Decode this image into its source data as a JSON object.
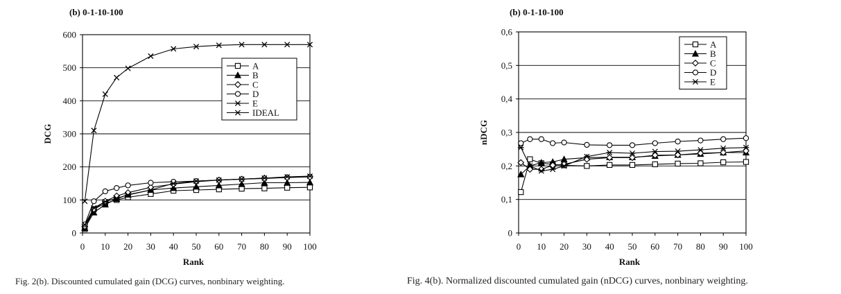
{
  "chart_data": [
    {
      "type": "line",
      "title": "(b) 0-1-10-100",
      "xlabel": "Rank",
      "ylabel": "DCG",
      "x": [
        1,
        5,
        10,
        15,
        20,
        30,
        40,
        50,
        60,
        70,
        80,
        90,
        100
      ],
      "xticks": [
        "0",
        "10",
        "20",
        "30",
        "40",
        "50",
        "60",
        "70",
        "80",
        "90",
        "100"
      ],
      "yticks": [
        "0",
        "100",
        "200",
        "300",
        "400",
        "500",
        "600"
      ],
      "xlim": [
        0,
        100
      ],
      "ylim": [
        0,
        600
      ],
      "legend_position": "top-right",
      "series": [
        {
          "name": "A",
          "marker": "square",
          "values": [
            12,
            72,
            90,
            100,
            108,
            118,
            128,
            130,
            132,
            134,
            135,
            137,
            138
          ]
        },
        {
          "name": "B",
          "marker": "triangle",
          "values": [
            15,
            62,
            86,
            103,
            116,
            130,
            136,
            140,
            144,
            148,
            152,
            152,
            153
          ]
        },
        {
          "name": "C",
          "marker": "diamond",
          "values": [
            20,
            72,
            96,
            112,
            122,
            138,
            148,
            155,
            160,
            163,
            166,
            168,
            170
          ]
        },
        {
          "name": "D",
          "marker": "circle",
          "values": [
            26,
            96,
            126,
            136,
            144,
            152,
            155,
            157,
            160,
            163,
            165,
            168,
            170
          ]
        },
        {
          "name": "E",
          "marker": "star",
          "values": [
            25,
            76,
            95,
            105,
            115,
            130,
            150,
            157,
            160,
            163,
            166,
            170,
            172
          ]
        },
        {
          "name": "IDEAL",
          "marker": "x",
          "values": [
            96,
            310,
            420,
            470,
            498,
            535,
            557,
            564,
            568,
            570,
            570,
            570,
            570
          ]
        }
      ]
    },
    {
      "type": "line",
      "title": "(b) 0-1-10-100",
      "xlabel": "Rank",
      "ylabel": "nDCG",
      "x": [
        1,
        5,
        10,
        15,
        20,
        30,
        40,
        50,
        60,
        70,
        80,
        90,
        100
      ],
      "xticks": [
        "0",
        "10",
        "20",
        "30",
        "40",
        "50",
        "60",
        "70",
        "80",
        "90",
        "100"
      ],
      "yticks": [
        "0",
        "0,1",
        "0,2",
        "0,3",
        "0,4",
        "0,5",
        "0,6"
      ],
      "xlim": [
        0,
        100
      ],
      "ylim": [
        0,
        0.6
      ],
      "legend_position": "top-right",
      "series": [
        {
          "name": "A",
          "marker": "square",
          "values": [
            0.122,
            0.22,
            0.208,
            0.205,
            0.202,
            0.2,
            0.203,
            0.203,
            0.205,
            0.207,
            0.208,
            0.211,
            0.212
          ]
        },
        {
          "name": "B",
          "marker": "triangle",
          "values": [
            0.175,
            0.2,
            0.21,
            0.212,
            0.22,
            0.225,
            0.226,
            0.226,
            0.23,
            0.233,
            0.236,
            0.24,
            0.24
          ]
        },
        {
          "name": "C",
          "marker": "diamond",
          "values": [
            0.21,
            0.19,
            0.19,
            0.202,
            0.205,
            0.22,
            0.225,
            0.225,
            0.232,
            0.233,
            0.238,
            0.24,
            0.245
          ]
        },
        {
          "name": "D",
          "marker": "circle",
          "values": [
            0.268,
            0.28,
            0.28,
            0.268,
            0.27,
            0.263,
            0.262,
            0.262,
            0.268,
            0.273,
            0.276,
            0.28,
            0.283
          ]
        },
        {
          "name": "E",
          "marker": "star",
          "values": [
            0.255,
            0.2,
            0.185,
            0.19,
            0.2,
            0.228,
            0.24,
            0.238,
            0.243,
            0.244,
            0.248,
            0.253,
            0.255
          ]
        }
      ]
    }
  ],
  "captions": {
    "fig2": "Fig. 2(b).   Discounted cumulated gain (DCG) curves, nonbinary weighting.",
    "fig4": "Fig. 4(b).   Normalized discounted cumulated gain (nDCG) curves, nonbinary weighting."
  }
}
